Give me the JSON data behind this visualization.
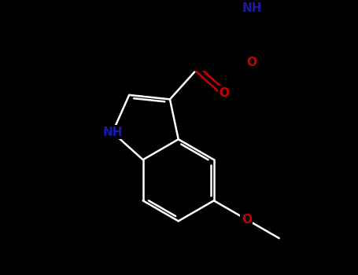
{
  "bg_color": "#000000",
  "bond_color": "#ffffff",
  "n_color": "#1a1aaa",
  "o_color": "#cc0000",
  "font_size_nh": 11,
  "font_size_o": 11,
  "line_width": 1.8,
  "figsize": [
    4.55,
    3.5
  ],
  "dpi": 100,
  "xlim": [
    -1.2,
    4.5
  ],
  "ylim": [
    -2.8,
    2.2
  ]
}
